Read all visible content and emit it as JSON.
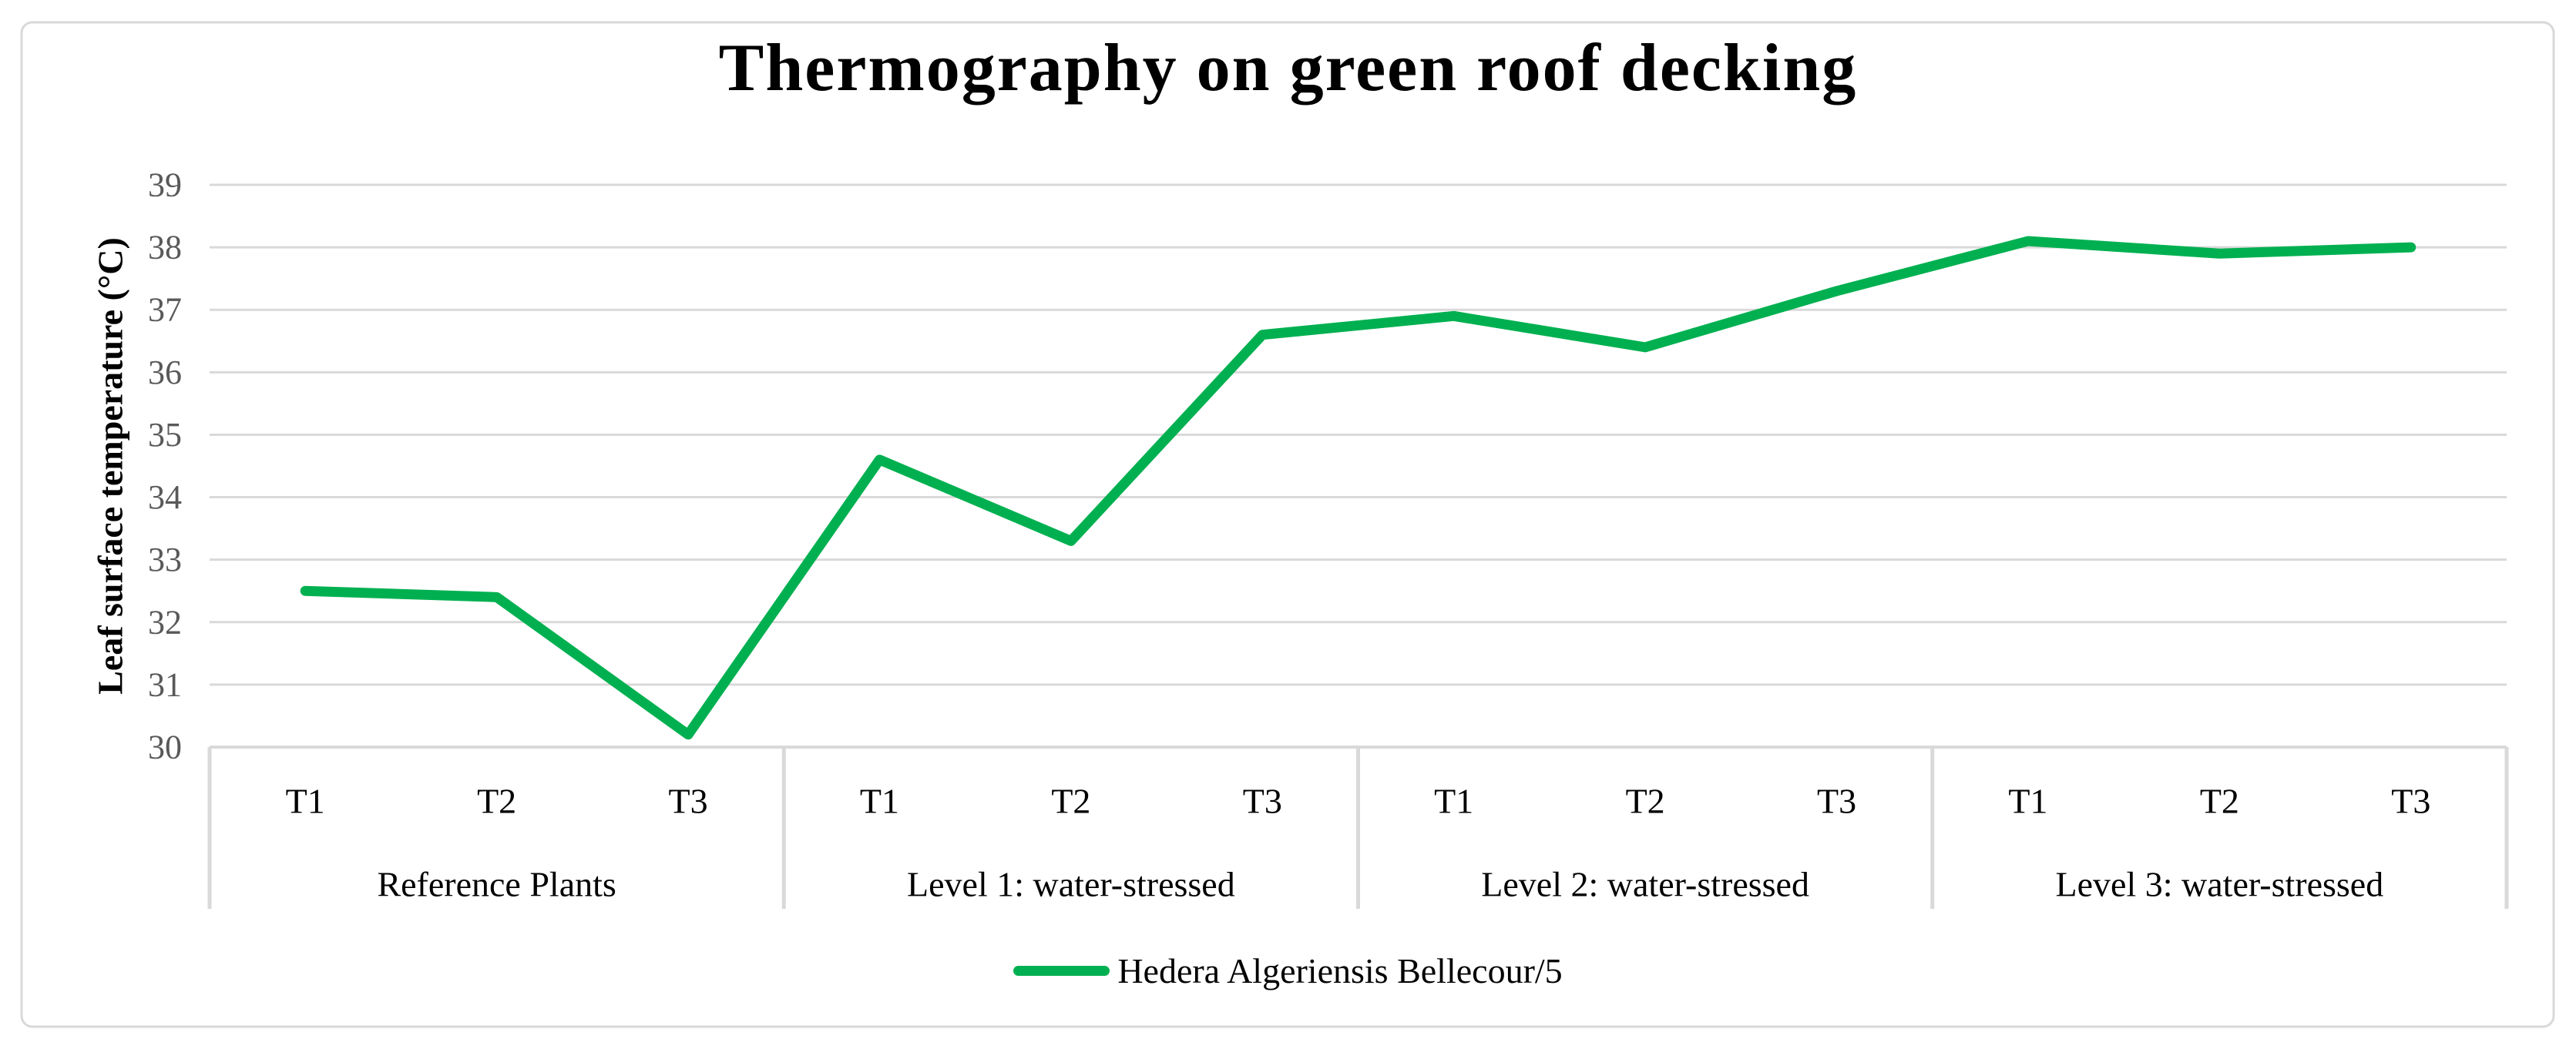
{
  "style": {
    "series_green": "#00B050",
    "gridline_gray": "#D9D9D9",
    "border_gray": "#D9D9D9",
    "tick_label_gray": "#595959",
    "category_label_black": "#000000",
    "background": "#FFFFFF"
  },
  "chart_data": {
    "type": "line",
    "title": "Thermography on green roof decking",
    "ylabel": "Leaf surface temperature (°C)",
    "xlabel": "",
    "ylim": [
      30,
      39
    ],
    "y_ticks": [
      30,
      31,
      32,
      33,
      34,
      35,
      36,
      37,
      38,
      39
    ],
    "grid": "horizontal",
    "legend_position": "bottom",
    "groups": [
      "Reference Plants",
      "Level 1: water-stressed",
      "Level 2: water-stressed",
      "Level 3: water-stressed"
    ],
    "sub_categories": [
      "T1",
      "T2",
      "T3"
    ],
    "categories": [
      "T1",
      "T2",
      "T3",
      "T1",
      "T2",
      "T3",
      "T1",
      "T2",
      "T3",
      "T1",
      "T2",
      "T3"
    ],
    "series": [
      {
        "name": "Hedera Algeriensis Bellecour/5",
        "color": "#00B050",
        "values": [
          32.5,
          32.4,
          30.2,
          34.6,
          33.3,
          36.6,
          36.9,
          36.4,
          37.3,
          38.1,
          37.9,
          38.0
        ]
      }
    ]
  }
}
